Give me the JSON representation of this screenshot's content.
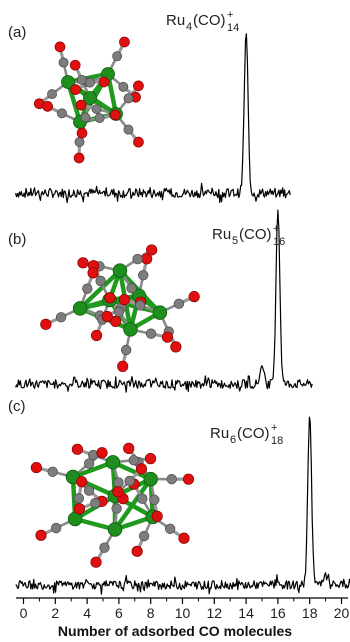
{
  "chart_data": {
    "type": "line",
    "xlabel": "Number of adsorbed CO molecules",
    "x_ticks": [
      0,
      2,
      4,
      6,
      8,
      10,
      12,
      14,
      16,
      18,
      20
    ],
    "xlim": [
      -0.8,
      20.8
    ],
    "panels": [
      {
        "letter": "(a)",
        "formula_base": "Ru",
        "formula_metal_count": "4",
        "formula_ligand": "(CO)",
        "formula_charge": "+",
        "formula_ligand_count": "14",
        "peak_x": 14,
        "peak_height": 1.0,
        "x_end": 16.8,
        "baseline_noise_scale": 0.06,
        "molecule_icon": "Ru4(CO)14+ cluster model"
      },
      {
        "letter": "(b)",
        "formula_base": "Ru",
        "formula_metal_count": "5",
        "formula_ligand": "(CO)",
        "formula_charge": "+",
        "formula_ligand_count": "16",
        "peak_x": 16,
        "peak_height": 1.0,
        "shoulder_x": 15,
        "shoulder_height": 0.09,
        "x_end": 18.2,
        "baseline_noise_scale": 0.05,
        "molecule_icon": "Ru5(CO)16+ cluster model"
      },
      {
        "letter": "(c)",
        "formula_base": "Ru",
        "formula_metal_count": "6",
        "formula_ligand": "(CO)",
        "formula_charge": "+",
        "formula_ligand_count": "18",
        "peak_x": 18,
        "peak_height": 1.0,
        "shoulder_x": 19,
        "shoulder_height": 0.05,
        "x_end": 20.8,
        "baseline_noise_scale": 0.05,
        "molecule_icon": "Ru6(CO)18+ cluster model"
      }
    ],
    "grid": false,
    "legend": "none"
  },
  "colors": {
    "ruthenium": "#1e8f1e",
    "carbon": "#7d7d7d",
    "oxygen": "#e01010",
    "line": "#000000"
  }
}
